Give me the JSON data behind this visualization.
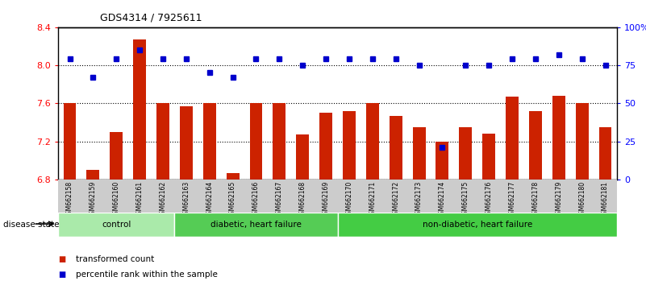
{
  "title": "GDS4314 / 7925611",
  "samples": [
    "GSM662158",
    "GSM662159",
    "GSM662160",
    "GSM662161",
    "GSM662162",
    "GSM662163",
    "GSM662164",
    "GSM662165",
    "GSM662166",
    "GSM662167",
    "GSM662168",
    "GSM662169",
    "GSM662170",
    "GSM662171",
    "GSM662172",
    "GSM662173",
    "GSM662174",
    "GSM662175",
    "GSM662176",
    "GSM662177",
    "GSM662178",
    "GSM662179",
    "GSM662180",
    "GSM662181"
  ],
  "bar_values": [
    7.6,
    6.9,
    7.3,
    8.27,
    7.6,
    7.57,
    7.6,
    6.87,
    7.6,
    7.6,
    7.27,
    7.5,
    7.52,
    7.6,
    7.47,
    7.35,
    7.2,
    7.35,
    7.28,
    7.67,
    7.52,
    7.68,
    7.6,
    7.35
  ],
  "dot_values": [
    79,
    67,
    79,
    85,
    79,
    79,
    70,
    67,
    79,
    79,
    75,
    79,
    79,
    79,
    79,
    75,
    21,
    75,
    75,
    79,
    79,
    82,
    79,
    75
  ],
  "ylim_left": [
    6.8,
    8.4
  ],
  "ylim_right": [
    0,
    100
  ],
  "yticks_left": [
    6.8,
    7.2,
    7.6,
    8.0,
    8.4
  ],
  "yticks_right": [
    0,
    25,
    50,
    75,
    100
  ],
  "ytick_labels_right": [
    "0",
    "25",
    "50",
    "75",
    "100%"
  ],
  "bar_color": "#CC2200",
  "dot_color": "#0000CC",
  "bg_color": "#ffffff",
  "tick_area_color": "#cccccc",
  "groups": [
    {
      "label": "control",
      "start": 0,
      "end": 4,
      "color": "#aaeaaa"
    },
    {
      "label": "diabetic, heart failure",
      "start": 5,
      "end": 11,
      "color": "#55cc55"
    },
    {
      "label": "non-diabetic, heart failure",
      "start": 12,
      "end": 23,
      "color": "#44cc44"
    }
  ],
  "legend_items": [
    {
      "label": "transformed count",
      "color": "#CC2200"
    },
    {
      "label": "percentile rank within the sample",
      "color": "#0000CC"
    }
  ],
  "disease_state_label": "disease state"
}
